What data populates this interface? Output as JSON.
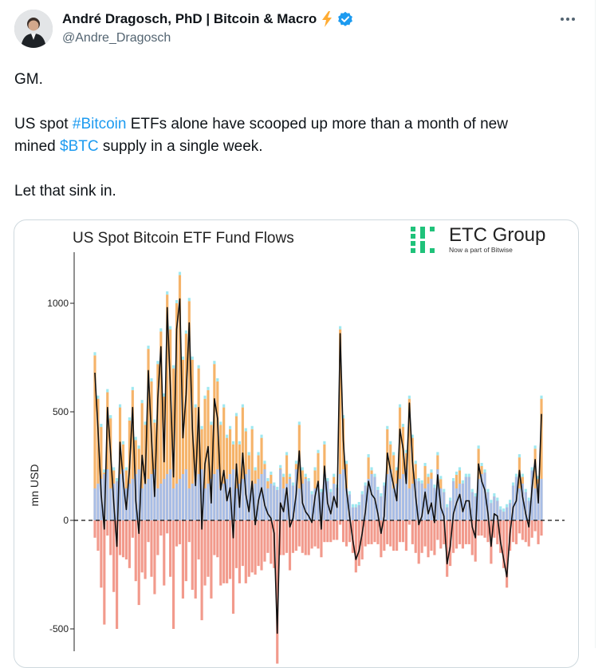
{
  "tweet": {
    "author_name": "André Dragosch, PhD | Bitcoin & Macro",
    "handle": "@Andre_Dragosch",
    "line1": "GM.",
    "line2_pre": "US spot ",
    "hashtag": "#Bitcoin",
    "line2_post": " ETFs alone have scooped up more than a month of new",
    "line3_pre": "mined ",
    "cashtag": "$BTC",
    "line3_post": " supply in a single week.",
    "line4": "Let that sink in."
  },
  "logo": {
    "name": "ETC Group",
    "tagline": "Now a part of Bitwise"
  },
  "colors": {
    "link": "#1d9bf0",
    "verified": "#1d9bf0",
    "bolt": "#ffac33",
    "logo_green": "#1fc27a",
    "inflow_orange": "#f5b36a",
    "inflow_blue": "#a8bde6",
    "inflow_cyan": "#9fe8f0",
    "outflow_red": "#f29a8c",
    "net_line": "#111111"
  },
  "chart_data": {
    "type": "bar",
    "title": "US Spot Bitcoin ETF Fund Flows",
    "ylabel": "mn USD",
    "xlabel": "",
    "ylim": [
      -550,
      1250
    ],
    "yticks": [
      -500,
      0,
      500,
      1000
    ],
    "ytick_labels": [
      "-500",
      "0",
      "500",
      "1000"
    ],
    "zero_line": "dashed",
    "net_flow_line": [
      680,
      420,
      120,
      -40,
      520,
      310,
      80,
      -120,
      360,
      180,
      50,
      240,
      520,
      90,
      -60,
      300,
      170,
      690,
      380,
      110,
      560,
      800,
      270,
      980,
      620,
      200,
      880,
      1020,
      380,
      580,
      910,
      420,
      160,
      520,
      -40,
      260,
      340,
      80,
      560,
      470,
      140,
      230,
      90,
      150,
      -80,
      260,
      60,
      310,
      120,
      40,
      180,
      -20,
      90,
      150,
      70,
      30,
      10,
      -60,
      -520,
      80,
      40,
      150,
      -30,
      10,
      120,
      320,
      80,
      40,
      20,
      -10,
      110,
      180,
      -40,
      250,
      80,
      30,
      110,
      60,
      860,
      370,
      140,
      20,
      -90,
      -180,
      -140,
      -60,
      40,
      180,
      120,
      100,
      30,
      -60,
      20,
      310,
      230,
      160,
      90,
      420,
      330,
      170,
      540,
      270,
      110,
      -20,
      20,
      130,
      30,
      80,
      -10,
      210,
      60,
      20,
      -200,
      -120,
      30,
      80,
      120,
      40,
      90,
      90,
      -30,
      -80,
      260,
      180,
      140,
      30,
      -120,
      30,
      20,
      -100,
      -180,
      -260,
      -60,
      60,
      90,
      230,
      110,
      30,
      -30,
      150,
      280,
      80,
      490
    ],
    "inflow_bars": [
      760,
      560,
      430,
      220,
      590,
      470,
      230,
      180,
      520,
      350,
      230,
      460,
      600,
      370,
      330,
      540,
      440,
      790,
      640,
      450,
      720,
      870,
      570,
      1040,
      880,
      700,
      1000,
      1130,
      740,
      860,
      1010,
      740,
      520,
      700,
      420,
      560,
      600,
      440,
      720,
      640,
      440,
      520,
      380,
      420,
      350,
      480,
      350,
      520,
      410,
      300,
      420,
      230,
      300,
      380,
      260,
      180,
      210,
      160,
      140,
      240,
      200,
      300,
      200,
      160,
      260,
      440,
      230,
      200,
      180,
      120,
      230,
      310,
      130,
      350,
      180,
      130,
      200,
      150,
      880,
      470,
      260,
      120,
      60,
      60,
      70,
      120,
      160,
      290,
      230,
      200,
      140,
      110,
      160,
      420,
      350,
      300,
      230,
      520,
      430,
      310,
      560,
      380,
      260,
      180,
      170,
      250,
      200,
      220,
      150,
      300,
      190,
      130,
      60,
      90,
      180,
      210,
      230,
      170,
      200,
      200,
      130,
      110,
      330,
      250,
      220,
      130,
      80,
      110,
      90,
      50,
      40,
      60,
      80,
      160,
      200,
      290,
      200,
      130,
      90,
      230,
      330,
      190,
      560
    ],
    "outflow_bars": [
      -80,
      -140,
      -310,
      -480,
      -70,
      -160,
      -330,
      -500,
      -160,
      -170,
      -180,
      -220,
      -80,
      -280,
      -390,
      -240,
      -270,
      -100,
      -260,
      -340,
      -160,
      -70,
      -300,
      -60,
      -260,
      -500,
      -120,
      -110,
      -360,
      -280,
      -100,
      -320,
      -360,
      -180,
      -460,
      -300,
      -260,
      -360,
      -160,
      -170,
      -300,
      -290,
      -290,
      -270,
      -430,
      -220,
      -290,
      -210,
      -290,
      -260,
      -240,
      -250,
      -210,
      -230,
      -190,
      -150,
      -200,
      -220,
      -660,
      -160,
      -160,
      -150,
      -230,
      -150,
      -140,
      -120,
      -150,
      -160,
      -160,
      -130,
      -120,
      -130,
      -170,
      -100,
      -100,
      -100,
      -90,
      -90,
      -20,
      -100,
      -120,
      -100,
      -150,
      -240,
      -210,
      -180,
      -120,
      -110,
      -110,
      -100,
      -110,
      -170,
      -140,
      -110,
      -120,
      -140,
      -140,
      -100,
      -100,
      -140,
      -20,
      -110,
      -150,
      -200,
      -150,
      -120,
      -170,
      -140,
      -160,
      -90,
      -130,
      -110,
      -260,
      -210,
      -150,
      -130,
      -110,
      -130,
      -110,
      -110,
      -160,
      -190,
      -70,
      -70,
      -80,
      -100,
      -200,
      -80,
      -110,
      -150,
      -220,
      -310,
      -140,
      -100,
      -110,
      -60,
      -90,
      -100,
      -120,
      -80,
      -50,
      -110,
      -70
    ]
  }
}
